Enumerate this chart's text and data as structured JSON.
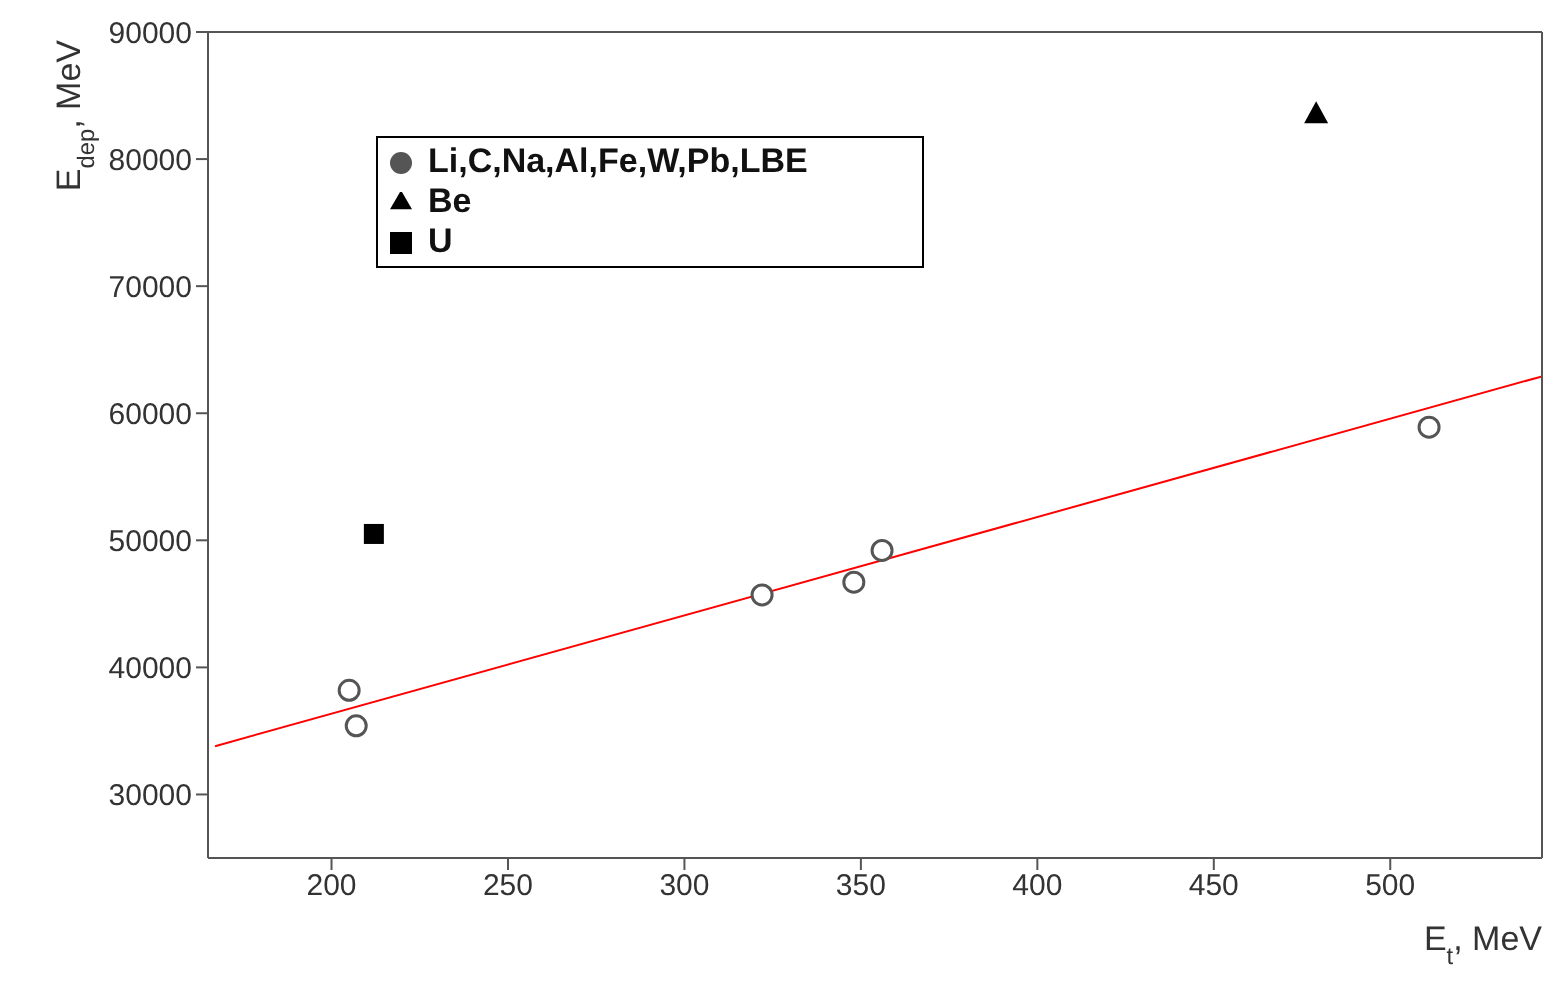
{
  "chart_data": {
    "type": "scatter",
    "xlabel": "E$_{t}$, MeV",
    "ylabel": "E$_{dep}$, MeV",
    "xlim": [
      165,
      543
    ],
    "ylim": [
      25000,
      90000
    ],
    "xticks": [
      200,
      250,
      300,
      350,
      400,
      450,
      500
    ],
    "yticks": [
      30000,
      40000,
      50000,
      60000,
      70000,
      80000,
      90000
    ],
    "legend": "top left",
    "series": [
      {
        "name": "Li,C,Na,Al,Fe,W,Pb,LBE",
        "color": "#555555",
        "marker": "circle",
        "x": [
          205,
          207,
          322,
          348,
          356,
          511
        ],
        "values": [
          38200,
          35400,
          45700,
          46700,
          49200,
          58900
        ]
      },
      {
        "name": "Be",
        "color": "#000000",
        "marker": "triangle",
        "x": [
          479
        ],
        "values": [
          83600
        ]
      },
      {
        "name": "U",
        "color": "#000000",
        "marker": "square",
        "x": [
          212
        ],
        "values": [
          50500
        ]
      },
      {
        "type": "line",
        "color": "#ff0000",
        "x": [
          167,
          543
        ],
        "values": [
          33800,
          62900
        ]
      }
    ]
  }
}
